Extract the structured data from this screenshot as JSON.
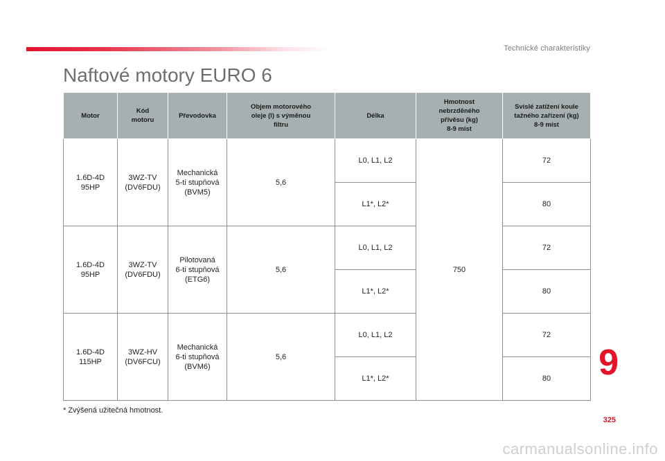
{
  "header": {
    "section": "Technické charakteristiky",
    "title": "Naftové motory EURO 6"
  },
  "colors": {
    "accent": "#e2132b",
    "table_header_bg": "#a7b0b0"
  },
  "table": {
    "headers": {
      "motor": "Motor",
      "kod": [
        "Kód",
        "motoru"
      ],
      "prevodovka": "Převodovka",
      "objem": [
        "Objem motorového",
        "oleje (l) s výměnou",
        "filtru"
      ],
      "delka": "Délka",
      "hmotnost": [
        "Hmotnost",
        "nebrzděného",
        "přívěsu (kg)",
        "8-9 míst"
      ],
      "zatizeni": [
        "Svislé zatížení koule",
        "tažného zařízení (kg)",
        "8-9 míst"
      ]
    },
    "groups": [
      {
        "motor": [
          "1.6D-4D",
          "95HP"
        ],
        "kod": [
          "3WZ-TV",
          "(DV6FDU)"
        ],
        "prevodovka": [
          "Mechanická",
          "5-ti stupňová",
          "(BVM5)"
        ],
        "objem": "5,6",
        "rows": [
          {
            "delka": "L0, L1, L2",
            "zatizeni": "72"
          },
          {
            "delka": "L1*, L2*",
            "zatizeni": "80"
          }
        ]
      },
      {
        "motor": [
          "1.6D-4D",
          "95HP"
        ],
        "kod": [
          "3WZ-TV",
          "(DV6FDU)"
        ],
        "prevodovka": [
          "Pilotovaná",
          "6-ti stupňová",
          "(ETG6)"
        ],
        "objem": "5,6",
        "rows": [
          {
            "delka": "L0, L1, L2",
            "zatizeni": "72"
          },
          {
            "delka": "L1*, L2*",
            "zatizeni": "80"
          }
        ]
      },
      {
        "motor": [
          "1.6D-4D",
          "115HP"
        ],
        "kod": [
          "3WZ-HV",
          "(DV6FCU)"
        ],
        "prevodovka": [
          "Mechanická",
          "6-ti stupňová",
          "(BVM6)"
        ],
        "objem": "5,6",
        "rows": [
          {
            "delka": "L0, L1, L2",
            "zatizeni": "72"
          },
          {
            "delka": "L1*, L2*",
            "zatizeni": "80"
          }
        ]
      }
    ],
    "hmotnost_value": "750"
  },
  "footnote": "* Zvýšená užitečná hmotnost.",
  "chapter_number": "9",
  "page_number": "325",
  "watermark": "carmanualsonline.info"
}
